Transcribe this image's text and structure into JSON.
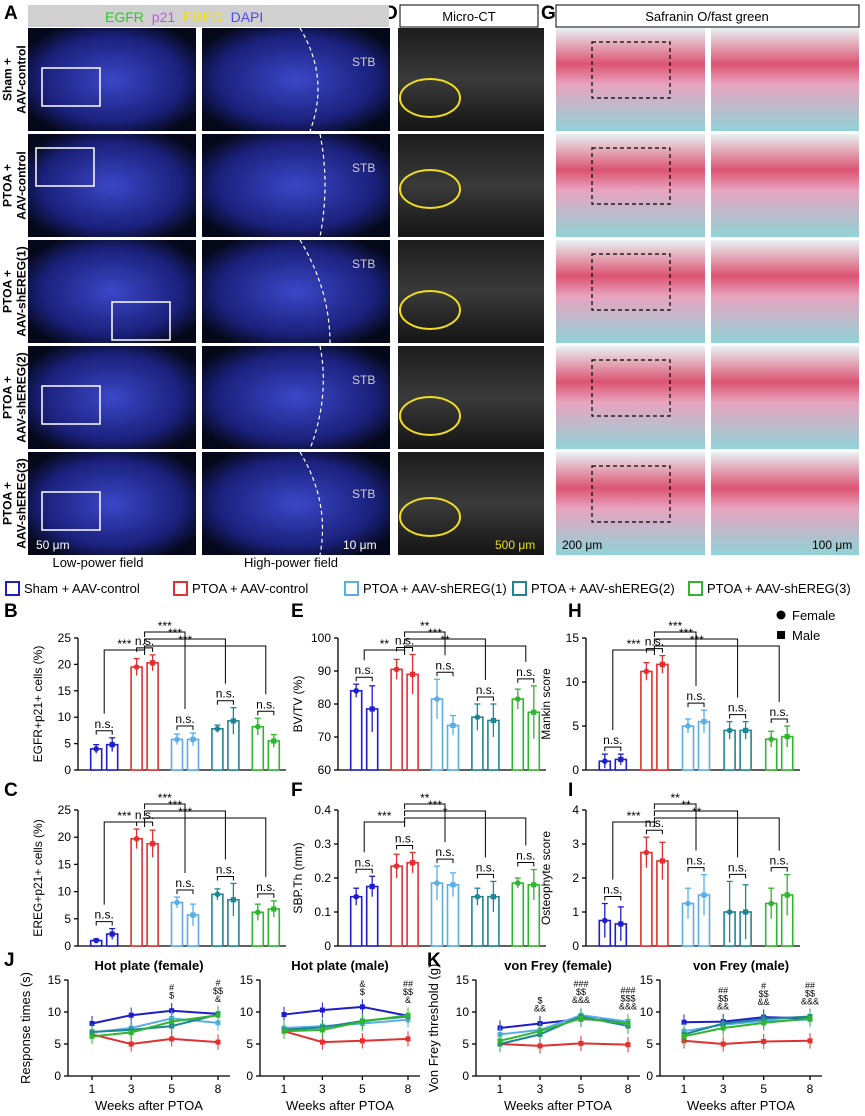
{
  "panel_letters": {
    "A": "A",
    "D": "D",
    "G": "G",
    "B": "B",
    "E": "E",
    "H": "H",
    "C": "C",
    "F": "F",
    "I": "I",
    "J": "J",
    "K": "K"
  },
  "imaging": {
    "fluor_legend": [
      {
        "text": "EGFR",
        "color": "#1fd11f"
      },
      {
        "text": "p21",
        "color": "#c84bff"
      },
      {
        "text": "EREG",
        "color": "#f2e000"
      },
      {
        "text": "DAPI",
        "color": "#4a4aff"
      }
    ],
    "row_labels": [
      [
        "Sham +",
        "AAV-control"
      ],
      [
        "PTOA +",
        "AAV-control"
      ],
      [
        "PTOA +",
        "AAV-shEREG(1)"
      ],
      [
        "PTOA +",
        "AAV-shEREG(2)"
      ],
      [
        "PTOA +",
        "AAV-shEREG(3)"
      ]
    ],
    "stb_label": "STB",
    "low_power_label": "Low-power field",
    "high_power_label": "High-power field",
    "scale_low": "50 μm",
    "scale_high": "10 μm",
    "microct_title": "Micro-CT",
    "microct_scale": "500 μm",
    "safranin_title": "Safranin O/fast green",
    "safranin_scale_low": "200 μm",
    "safranin_scale_high": "100 μm"
  },
  "colors": {
    "sham": "#1d1dc9",
    "ptoa": "#e03030",
    "sh1": "#5aaee8",
    "sh2": "#1e8595",
    "sh3": "#2fb52f"
  },
  "group_legend": [
    {
      "label": "Sham + AAV-control",
      "color": "#1d1dc9"
    },
    {
      "label": "PTOA + AAV-control",
      "color": "#e03030"
    },
    {
      "label": "PTOA + AAV-shEREG(1)",
      "color": "#5aaee8"
    },
    {
      "label": "PTOA + AAV-shEREG(2)",
      "color": "#1e8595"
    },
    {
      "label": "PTOA + AAV-shEREG(3)",
      "color": "#2fb52f"
    }
  ],
  "sex_legend": [
    {
      "label": "Female",
      "marker": "circle"
    },
    {
      "label": "Male",
      "marker": "square"
    }
  ],
  "chart_data": [
    {
      "panel": "B",
      "type": "bar",
      "ylabel": "EGFR+p21+ cells (%)",
      "ylim": [
        0,
        25
      ],
      "ticks": [
        0,
        5,
        10,
        15,
        20,
        25
      ],
      "groups": [
        "Sham + AAV-control",
        "PTOA + AAV-control",
        "PTOA + AAV-shEREG(1)",
        "PTOA + AAV-shEREG(2)",
        "PTOA + AAV-shEREG(3)"
      ],
      "female": [
        4.0,
        19.5,
        5.8,
        7.8,
        8.2
      ],
      "male": [
        4.8,
        20.3,
        5.8,
        9.3,
        5.5
      ],
      "female_err": [
        0.8,
        1.6,
        1.0,
        0.7,
        1.6
      ],
      "male_err": [
        1.3,
        1.5,
        1.2,
        2.5,
        1.2
      ],
      "within_group": [
        "n.s.",
        "n.s.",
        "n.s.",
        "n.s.",
        "n.s."
      ],
      "vs_ptoa": [
        "***",
        "***",
        "***",
        "***"
      ]
    },
    {
      "panel": "C",
      "type": "bar",
      "ylabel": "EREG+p21+ cells (%)",
      "ylim": [
        0,
        25
      ],
      "ticks": [
        0,
        5,
        10,
        15,
        20,
        25
      ],
      "groups": [
        "Sham + AAV-control",
        "PTOA + AAV-control",
        "PTOA + AAV-shEREG(1)",
        "PTOA + AAV-shEREG(2)",
        "PTOA + AAV-shEREG(3)"
      ],
      "female": [
        1.0,
        19.7,
        8.0,
        9.5,
        6.2
      ],
      "male": [
        2.2,
        18.8,
        5.7,
        8.5,
        6.8
      ],
      "female_err": [
        0.3,
        1.8,
        1.0,
        1.0,
        1.5
      ],
      "male_err": [
        1.0,
        2.5,
        2.0,
        3.0,
        1.5
      ],
      "within_group": [
        "n.s.",
        "n.s.",
        "n.s.",
        "n.s.",
        "n.s."
      ],
      "vs_ptoa": [
        "***",
        "***",
        "***",
        "***"
      ]
    },
    {
      "panel": "E",
      "type": "bar",
      "ylabel": "BV/TV (%)",
      "ylim": [
        60,
        100
      ],
      "ticks": [
        60,
        70,
        80,
        90,
        100
      ],
      "groups": [
        "Sham + AAV-control",
        "PTOA + AAV-control",
        "PTOA + AAV-shEREG(1)",
        "PTOA + AAV-shEREG(2)",
        "PTOA + AAV-shEREG(3)"
      ],
      "female": [
        84,
        90.5,
        81.5,
        76,
        81.5
      ],
      "male": [
        78.5,
        89,
        73.5,
        75,
        77.5
      ],
      "female_err": [
        2,
        3,
        6,
        4,
        3
      ],
      "male_err": [
        7,
        6,
        3,
        5,
        8
      ],
      "within_group": [
        "n.s.",
        "n.s.",
        "n.s.",
        "n.s.",
        "n.s."
      ],
      "vs_ptoa": [
        "**",
        "**",
        "***",
        "**"
      ]
    },
    {
      "panel": "F",
      "type": "bar",
      "ylabel": "SBP.Th (mm)",
      "ylim": [
        0,
        0.4
      ],
      "ticks": [
        0,
        0.1,
        0.2,
        0.3,
        0.4
      ],
      "groups": [
        "Sham + AAV-control",
        "PTOA + AAV-control",
        "PTOA + AAV-shEREG(1)",
        "PTOA + AAV-shEREG(2)",
        "PTOA + AAV-shEREG(3)"
      ],
      "female": [
        0.145,
        0.235,
        0.185,
        0.145,
        0.185
      ],
      "male": [
        0.175,
        0.245,
        0.18,
        0.145,
        0.18
      ],
      "female_err": [
        0.025,
        0.035,
        0.05,
        0.025,
        0.015
      ],
      "male_err": [
        0.03,
        0.03,
        0.035,
        0.045,
        0.045
      ],
      "within_group": [
        "n.s.",
        "n.s.",
        "n.s.",
        "n.s.",
        "n.s."
      ],
      "vs_ptoa": [
        "***",
        "**",
        "***",
        "*"
      ]
    },
    {
      "panel": "H",
      "type": "bar",
      "ylabel": "Mankin score",
      "ylim": [
        0,
        15
      ],
      "ticks": [
        0,
        5,
        10,
        15
      ],
      "groups": [
        "Sham + AAV-control",
        "PTOA + AAV-control",
        "PTOA + AAV-shEREG(1)",
        "PTOA + AAV-shEREG(2)",
        "PTOA + AAV-shEREG(3)"
      ],
      "female": [
        1.0,
        11.2,
        5.0,
        4.5,
        3.5
      ],
      "male": [
        1.2,
        12.0,
        5.5,
        4.5,
        3.8
      ],
      "female_err": [
        0.8,
        1.0,
        0.8,
        1.0,
        0.9
      ],
      "male_err": [
        0.6,
        1.0,
        1.3,
        1.0,
        1.2
      ],
      "within_group": [
        "n.s.",
        "n.s.",
        "n.s.",
        "n.s.",
        "n.s."
      ],
      "vs_ptoa": [
        "***",
        "***",
        "***",
        "***"
      ]
    },
    {
      "panel": "I",
      "type": "bar",
      "ylabel": "Osteophyte score",
      "ylim": [
        0,
        4
      ],
      "ticks": [
        0,
        1,
        2,
        3,
        4
      ],
      "groups": [
        "Sham + AAV-control",
        "PTOA + AAV-control",
        "PTOA + AAV-shEREG(1)",
        "PTOA + AAV-shEREG(2)",
        "PTOA + AAV-shEREG(3)"
      ],
      "female": [
        0.75,
        2.75,
        1.25,
        1.0,
        1.25
      ],
      "male": [
        0.65,
        2.5,
        1.5,
        1.0,
        1.5
      ],
      "female_err": [
        0.5,
        0.45,
        0.45,
        0.9,
        0.45
      ],
      "male_err": [
        0.5,
        0.55,
        0.6,
        0.8,
        0.6
      ],
      "within_group": [
        "n.s.",
        "n.s.",
        "n.s.",
        "n.s.",
        "n.s."
      ],
      "vs_ptoa": [
        "***",
        "**",
        "**",
        "**"
      ]
    },
    {
      "panel": "J",
      "type": "line",
      "title": "Hot plate (female)",
      "ylabel": "Response times (s)",
      "xlabel": "Weeks after PTOA",
      "x": [
        1,
        3,
        5,
        8
      ],
      "ylim": [
        0,
        15
      ],
      "ticks": [
        0,
        5,
        10,
        15
      ],
      "series": [
        {
          "name": "Sham + AAV-control",
          "values": [
            8.2,
            9.5,
            10.2,
            9.7
          ]
        },
        {
          "name": "PTOA + AAV-control",
          "values": [
            6.5,
            5.0,
            5.8,
            5.3
          ]
        },
        {
          "name": "PTOA + AAV-shEREG(1)",
          "values": [
            6.8,
            7.5,
            9.0,
            8.3
          ]
        },
        {
          "name": "PTOA + AAV-shEREG(2)",
          "values": [
            6.9,
            7.2,
            7.8,
            9.6
          ]
        },
        {
          "name": "PTOA + AAV-shEREG(3)",
          "values": [
            6.2,
            6.8,
            8.5,
            9.5
          ]
        }
      ],
      "annotations": [
        {
          "x": 5,
          "lines": [
            "#",
            "$"
          ]
        },
        {
          "x": 8,
          "lines": [
            "#",
            "$$",
            "&"
          ]
        }
      ]
    },
    {
      "panel": "J",
      "type": "line",
      "title": "Hot plate (male)",
      "ylabel": "Response times (s)",
      "xlabel": "Weeks after PTOA",
      "x": [
        1,
        3,
        5,
        8
      ],
      "ylim": [
        0,
        15
      ],
      "ticks": [
        0,
        5,
        10,
        15
      ],
      "series": [
        {
          "name": "Sham + AAV-control",
          "values": [
            9.6,
            10.3,
            10.8,
            9.4
          ]
        },
        {
          "name": "PTOA + AAV-control",
          "values": [
            7.0,
            5.3,
            5.5,
            5.8
          ]
        },
        {
          "name": "PTOA + AAV-shEREG(1)",
          "values": [
            7.5,
            7.8,
            8.2,
            8.8
          ]
        },
        {
          "name": "PTOA + AAV-shEREG(2)",
          "values": [
            7.2,
            7.6,
            8.6,
            9.3
          ]
        },
        {
          "name": "PTOA + AAV-shEREG(3)",
          "values": [
            7.0,
            7.2,
            8.5,
            9.5
          ]
        }
      ],
      "annotations": [
        {
          "x": 5,
          "lines": [
            "&",
            "$"
          ]
        },
        {
          "x": 8,
          "lines": [
            "##",
            "$$",
            "&"
          ]
        }
      ]
    },
    {
      "panel": "K",
      "type": "line",
      "title": "von Frey (female)",
      "ylabel": "Von Frey threshold (g)",
      "xlabel": "Weeks after PTOA",
      "x": [
        1,
        3,
        5,
        8
      ],
      "ylim": [
        0,
        15
      ],
      "ticks": [
        0,
        5,
        10,
        15
      ],
      "series": [
        {
          "name": "Sham + AAV-control",
          "values": [
            7.5,
            8.2,
            8.9,
            8.5
          ]
        },
        {
          "name": "PTOA + AAV-control",
          "values": [
            5.0,
            4.7,
            5.1,
            4.9
          ]
        },
        {
          "name": "PTOA + AAV-shEREG(1)",
          "values": [
            6.5,
            7.2,
            9.5,
            8.5
          ]
        },
        {
          "name": "PTOA + AAV-shEREG(2)",
          "values": [
            5.0,
            6.5,
            9.3,
            7.8
          ]
        },
        {
          "name": "PTOA + AAV-shEREG(3)",
          "values": [
            5.5,
            7.0,
            9.0,
            8.2
          ]
        }
      ],
      "annotations": [
        {
          "x": 3,
          "lines": [
            "$",
            "&&"
          ]
        },
        {
          "x": 5,
          "lines": [
            "###",
            "$$",
            "&&&"
          ]
        },
        {
          "x": 8,
          "lines": [
            "###",
            "$$$",
            "&&&"
          ]
        }
      ]
    },
    {
      "panel": "K",
      "type": "line",
      "title": "von Frey (male)",
      "ylabel": "Von Frey threshold (g)",
      "xlabel": "Weeks after PTOA",
      "x": [
        1,
        3,
        5,
        8
      ],
      "ylim": [
        0,
        15
      ],
      "ticks": [
        0,
        5,
        10,
        15
      ],
      "series": [
        {
          "name": "Sham + AAV-control",
          "values": [
            8.4,
            8.5,
            9.2,
            9.0
          ]
        },
        {
          "name": "PTOA + AAV-control",
          "values": [
            5.5,
            5.0,
            5.4,
            5.5
          ]
        },
        {
          "name": "PTOA + AAV-shEREG(1)",
          "values": [
            7.0,
            8.0,
            8.6,
            8.8
          ]
        },
        {
          "name": "PTOA + AAV-shEREG(2)",
          "values": [
            6.5,
            8.2,
            8.9,
            9.3
          ]
        },
        {
          "name": "PTOA + AAV-shEREG(3)",
          "values": [
            6.2,
            7.5,
            8.3,
            9.0
          ]
        }
      ],
      "annotations": [
        {
          "x": 3,
          "lines": [
            "##",
            "$$",
            "&&"
          ]
        },
        {
          "x": 5,
          "lines": [
            "#",
            "$$",
            "&&"
          ]
        },
        {
          "x": 8,
          "lines": [
            "##",
            "$$",
            "&&&"
          ]
        }
      ]
    }
  ]
}
